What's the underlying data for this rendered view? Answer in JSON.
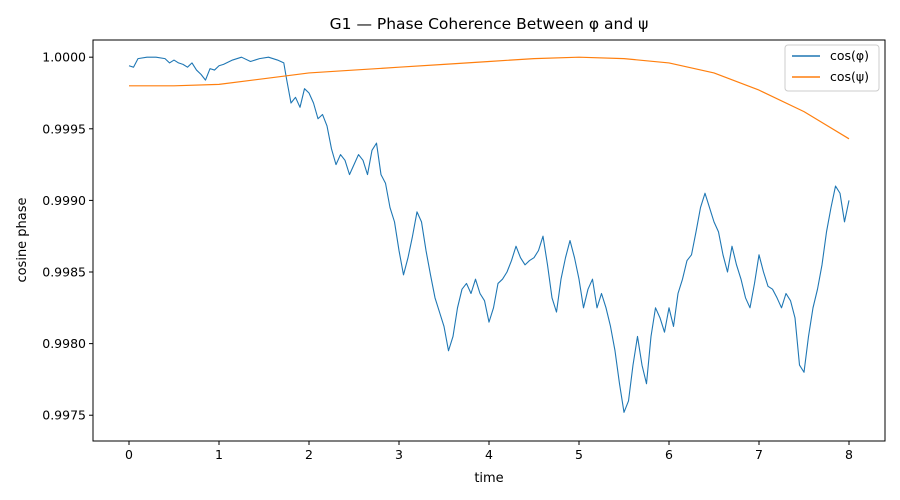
{
  "chart_data": {
    "type": "line",
    "title": "G1 — Phase Coherence Between φ and ψ",
    "xlabel": "time",
    "ylabel": "cosine phase",
    "xlim": [
      -0.4,
      8.4
    ],
    "ylim": [
      0.99732,
      1.00012
    ],
    "x_ticks": [
      0,
      1,
      2,
      3,
      4,
      5,
      6,
      7,
      8
    ],
    "x_tick_labels": [
      "0",
      "1",
      "2",
      "3",
      "4",
      "5",
      "6",
      "7",
      "8"
    ],
    "y_ticks": [
      0.9975,
      0.998,
      0.9985,
      0.999,
      0.9995,
      1.0
    ],
    "y_tick_labels": [
      "0.9975",
      "0.9980",
      "0.9985",
      "0.9990",
      "0.9995",
      "1.0000"
    ],
    "grid": false,
    "legend_position": "top-right",
    "series": [
      {
        "name": "cos(φ)",
        "color": "#1f77b4",
        "points": [
          [
            0,
            0.99994
          ],
          [
            0.05,
            0.99993
          ],
          [
            0.1,
            0.99999
          ],
          [
            0.2,
            1.0
          ],
          [
            0.3,
            1.0
          ],
          [
            0.4,
            0.99999
          ],
          [
            0.45,
            0.99996
          ],
          [
            0.5,
            0.99998
          ],
          [
            0.55,
            0.99996
          ],
          [
            0.6,
            0.99995
          ],
          [
            0.65,
            0.99993
          ],
          [
            0.7,
            0.99996
          ],
          [
            0.75,
            0.99991
          ],
          [
            0.8,
            0.99988
          ],
          [
            0.85,
            0.99984
          ],
          [
            0.9,
            0.99992
          ],
          [
            0.95,
            0.99991
          ],
          [
            1.0,
            0.99994
          ],
          [
            1.05,
            0.99995
          ],
          [
            1.15,
            0.99998
          ],
          [
            1.25,
            1.0
          ],
          [
            1.35,
            0.99997
          ],
          [
            1.45,
            0.99999
          ],
          [
            1.55,
            1.0
          ],
          [
            1.65,
            0.99998
          ],
          [
            1.72,
            0.99996
          ],
          [
            1.75,
            0.99985
          ],
          [
            1.8,
            0.99968
          ],
          [
            1.85,
            0.99972
          ],
          [
            1.9,
            0.99965
          ],
          [
            1.95,
            0.99978
          ],
          [
            2.0,
            0.99975
          ],
          [
            2.05,
            0.99968
          ],
          [
            2.1,
            0.99957
          ],
          [
            2.15,
            0.9996
          ],
          [
            2.2,
            0.99952
          ],
          [
            2.25,
            0.99936
          ],
          [
            2.3,
            0.99925
          ],
          [
            2.35,
            0.99932
          ],
          [
            2.4,
            0.99928
          ],
          [
            2.45,
            0.99918
          ],
          [
            2.5,
            0.99925
          ],
          [
            2.55,
            0.99932
          ],
          [
            2.6,
            0.99928
          ],
          [
            2.65,
            0.99918
          ],
          [
            2.7,
            0.99935
          ],
          [
            2.75,
            0.9994
          ],
          [
            2.8,
            0.99918
          ],
          [
            2.85,
            0.99912
          ],
          [
            2.9,
            0.99895
          ],
          [
            2.95,
            0.99885
          ],
          [
            3.0,
            0.99865
          ],
          [
            3.05,
            0.99848
          ],
          [
            3.1,
            0.9986
          ],
          [
            3.15,
            0.99875
          ],
          [
            3.2,
            0.99892
          ],
          [
            3.25,
            0.99885
          ],
          [
            3.3,
            0.99865
          ],
          [
            3.35,
            0.99848
          ],
          [
            3.4,
            0.99832
          ],
          [
            3.45,
            0.99822
          ],
          [
            3.5,
            0.99812
          ],
          [
            3.55,
            0.99795
          ],
          [
            3.6,
            0.99805
          ],
          [
            3.65,
            0.99825
          ],
          [
            3.7,
            0.99838
          ],
          [
            3.75,
            0.99842
          ],
          [
            3.8,
            0.99835
          ],
          [
            3.85,
            0.99845
          ],
          [
            3.9,
            0.99835
          ],
          [
            3.95,
            0.9983
          ],
          [
            4.0,
            0.99815
          ],
          [
            4.05,
            0.99825
          ],
          [
            4.1,
            0.99842
          ],
          [
            4.15,
            0.99845
          ],
          [
            4.2,
            0.9985
          ],
          [
            4.25,
            0.99858
          ],
          [
            4.3,
            0.99868
          ],
          [
            4.35,
            0.9986
          ],
          [
            4.4,
            0.99855
          ],
          [
            4.45,
            0.99858
          ],
          [
            4.5,
            0.9986
          ],
          [
            4.55,
            0.99865
          ],
          [
            4.6,
            0.99875
          ],
          [
            4.65,
            0.99855
          ],
          [
            4.7,
            0.99832
          ],
          [
            4.75,
            0.99822
          ],
          [
            4.8,
            0.99845
          ],
          [
            4.85,
            0.9986
          ],
          [
            4.9,
            0.99872
          ],
          [
            4.95,
            0.9986
          ],
          [
            5.0,
            0.99845
          ],
          [
            5.05,
            0.99825
          ],
          [
            5.1,
            0.99838
          ],
          [
            5.15,
            0.99845
          ],
          [
            5.2,
            0.99825
          ],
          [
            5.25,
            0.99835
          ],
          [
            5.3,
            0.99825
          ],
          [
            5.35,
            0.99812
          ],
          [
            5.4,
            0.99795
          ],
          [
            5.45,
            0.99772
          ],
          [
            5.5,
            0.99752
          ],
          [
            5.55,
            0.9976
          ],
          [
            5.6,
            0.99785
          ],
          [
            5.65,
            0.99805
          ],
          [
            5.7,
            0.99785
          ],
          [
            5.75,
            0.99772
          ],
          [
            5.8,
            0.99805
          ],
          [
            5.85,
            0.99825
          ],
          [
            5.9,
            0.99818
          ],
          [
            5.95,
            0.99808
          ],
          [
            6.0,
            0.99825
          ],
          [
            6.05,
            0.99812
          ],
          [
            6.1,
            0.99835
          ],
          [
            6.15,
            0.99845
          ],
          [
            6.2,
            0.99858
          ],
          [
            6.25,
            0.99862
          ],
          [
            6.3,
            0.99878
          ],
          [
            6.35,
            0.99895
          ],
          [
            6.4,
            0.99905
          ],
          [
            6.45,
            0.99895
          ],
          [
            6.5,
            0.99885
          ],
          [
            6.55,
            0.99878
          ],
          [
            6.6,
            0.99862
          ],
          [
            6.65,
            0.9985
          ],
          [
            6.7,
            0.99868
          ],
          [
            6.75,
            0.99855
          ],
          [
            6.8,
            0.99845
          ],
          [
            6.85,
            0.99832
          ],
          [
            6.9,
            0.99825
          ],
          [
            6.95,
            0.99842
          ],
          [
            7.0,
            0.99862
          ],
          [
            7.05,
            0.9985
          ],
          [
            7.1,
            0.9984
          ],
          [
            7.15,
            0.99838
          ],
          [
            7.2,
            0.99832
          ],
          [
            7.25,
            0.99825
          ],
          [
            7.3,
            0.99835
          ],
          [
            7.35,
            0.9983
          ],
          [
            7.4,
            0.99818
          ],
          [
            7.45,
            0.99785
          ],
          [
            7.5,
            0.9978
          ],
          [
            7.55,
            0.99805
          ],
          [
            7.6,
            0.99825
          ],
          [
            7.65,
            0.99838
          ],
          [
            7.7,
            0.99855
          ],
          [
            7.75,
            0.99878
          ],
          [
            7.8,
            0.99895
          ],
          [
            7.85,
            0.9991
          ],
          [
            7.9,
            0.99905
          ],
          [
            7.95,
            0.99885
          ],
          [
            8.0,
            0.999
          ]
        ]
      },
      {
        "name": "cos(ψ)",
        "color": "#ff7f0e",
        "points": [
          [
            0,
            0.9998
          ],
          [
            0.5,
            0.9998
          ],
          [
            1.0,
            0.99981
          ],
          [
            1.5,
            0.99985
          ],
          [
            2.0,
            0.99989
          ],
          [
            2.5,
            0.99991
          ],
          [
            3.0,
            0.99993
          ],
          [
            3.5,
            0.99995
          ],
          [
            4.0,
            0.99997
          ],
          [
            4.5,
            0.99999
          ],
          [
            5.0,
            1.0
          ],
          [
            5.5,
            0.99999
          ],
          [
            6.0,
            0.99996
          ],
          [
            6.5,
            0.99989
          ],
          [
            7.0,
            0.99977
          ],
          [
            7.5,
            0.99962
          ],
          [
            8.0,
            0.99943
          ]
        ]
      }
    ]
  }
}
